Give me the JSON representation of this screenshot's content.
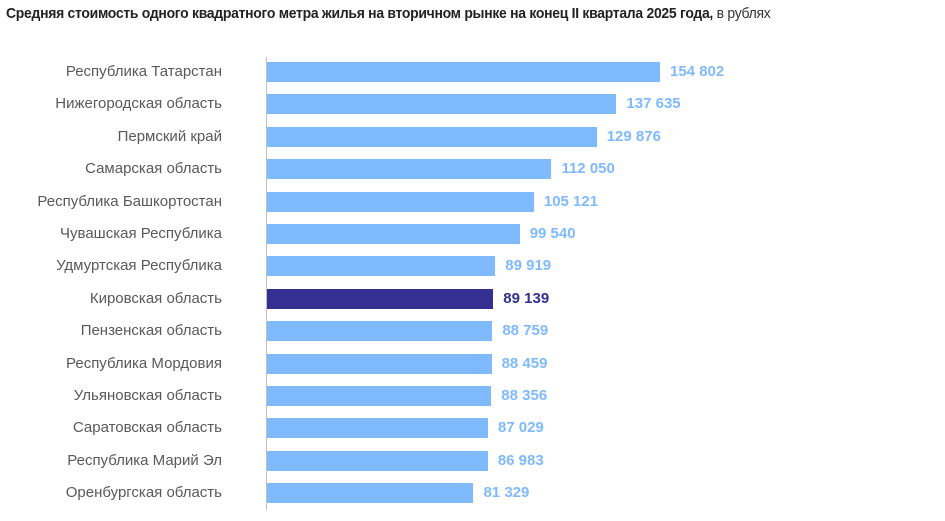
{
  "chart_data": {
    "type": "bar",
    "orientation": "horizontal",
    "title": "Средняя стоимость одного квадратного метра жилья на вторичном рынке на конец II квартала 2025 года,",
    "unit": "в рублях",
    "categories": [
      "Республика Татарстан",
      "Нижегородская область",
      "Пермский край",
      "Самарская область",
      "Республика Башкортостан",
      "Чувашская Республика",
      "Удмуртская Республика",
      "Кировская область",
      "Пензенская область",
      "Республика Мордовия",
      "Ульяновская область",
      "Саратовская область",
      "Республика Марий Эл",
      "Оренбургская область"
    ],
    "values": [
      154802,
      137635,
      129876,
      112050,
      105121,
      99540,
      89919,
      89139,
      88759,
      88459,
      88356,
      87029,
      86983,
      81329
    ],
    "value_labels": [
      "154 802",
      "137 635",
      "129 876",
      "112 050",
      "105 121",
      "99 540",
      "89 919",
      "89 139",
      "88 759",
      "88 459",
      "88 356",
      "87 029",
      "86 983",
      "81 329"
    ],
    "highlight_index": 7,
    "xlim": [
      0,
      160000
    ],
    "grid": false,
    "colors": {
      "bar": "#7fbaff",
      "highlight": "#342f91",
      "label": "#595959"
    }
  }
}
